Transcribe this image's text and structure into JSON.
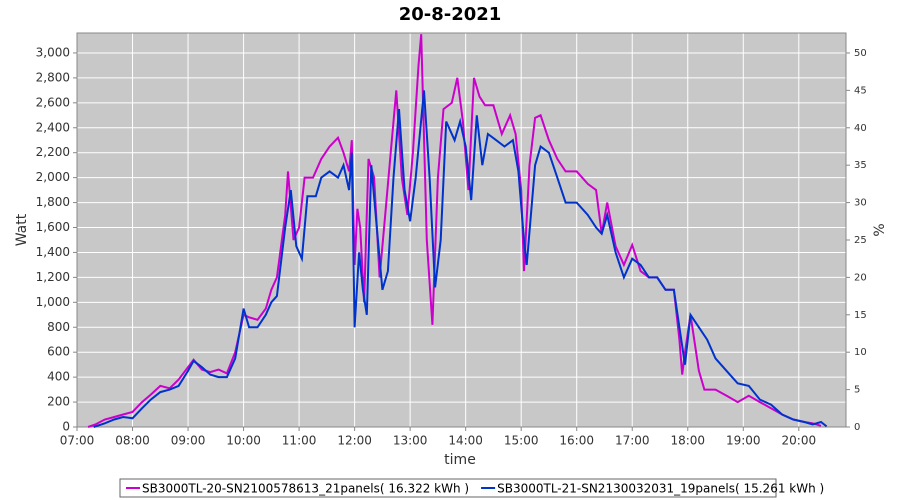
{
  "chart_data": {
    "type": "line",
    "title": "20-8-2021",
    "x_label": "time",
    "y_label": "Watt",
    "y2_label": "%",
    "xlim": [
      7,
      20.85
    ],
    "xticks": [
      {
        "value": 7,
        "label": "07:00"
      },
      {
        "value": 8,
        "label": "08:00"
      },
      {
        "value": 9,
        "label": "09:00"
      },
      {
        "value": 10,
        "label": "10:00"
      },
      {
        "value": 11,
        "label": "11:00"
      },
      {
        "value": 12,
        "label": "12:00"
      },
      {
        "value": 13,
        "label": "13:00"
      },
      {
        "value": 14,
        "label": "14:00"
      },
      {
        "value": 15,
        "label": "15:00"
      },
      {
        "value": 16,
        "label": "16:00"
      },
      {
        "value": 17,
        "label": "17:00"
      },
      {
        "value": 18,
        "label": "18:00"
      },
      {
        "value": 19,
        "label": "19:00"
      },
      {
        "value": 20,
        "label": "20:00"
      }
    ],
    "ylim": [
      0,
      3160
    ],
    "yticks": [
      0,
      200,
      400,
      600,
      800,
      {
        "value": 1000,
        "label": "1,000"
      },
      {
        "value": 1200,
        "label": "1,200"
      },
      {
        "value": 1400,
        "label": "1,400"
      },
      {
        "value": 1600,
        "label": "1,600"
      },
      {
        "value": 1800,
        "label": "1,800"
      },
      {
        "value": 2000,
        "label": "2,000"
      },
      {
        "value": 2200,
        "label": "2,200"
      },
      {
        "value": 2400,
        "label": "2,400"
      },
      {
        "value": 2600,
        "label": "2,600"
      },
      {
        "value": 2800,
        "label": "2,800"
      },
      {
        "value": 3000,
        "label": "3,000"
      }
    ],
    "y2lim": [
      0,
      52.67
    ],
    "y2ticks": [
      0,
      5,
      10,
      15,
      20,
      25,
      30,
      35,
      40,
      45,
      50
    ],
    "grid": true,
    "legend": "bottom",
    "series": [
      {
        "name": "SB3000TL-20-SN2100578613_21panels( 16.322 kWh )",
        "color": "#cc00cc",
        "x": [
          7.2,
          7.33,
          7.5,
          7.67,
          7.83,
          8.0,
          8.17,
          8.33,
          8.5,
          8.67,
          8.83,
          9.0,
          9.1,
          9.25,
          9.4,
          9.55,
          9.7,
          9.85,
          10.0,
          10.1,
          10.25,
          10.4,
          10.5,
          10.6,
          10.75,
          10.8,
          10.9,
          11.0,
          11.1,
          11.25,
          11.4,
          11.55,
          11.7,
          11.8,
          11.9,
          11.95,
          12.0,
          12.05,
          12.1,
          12.17,
          12.25,
          12.35,
          12.45,
          12.55,
          12.65,
          12.75,
          12.85,
          12.95,
          13.05,
          13.15,
          13.2,
          13.3,
          13.4,
          13.5,
          13.6,
          13.75,
          13.85,
          13.95,
          14.05,
          14.15,
          14.25,
          14.35,
          14.5,
          14.65,
          14.8,
          14.9,
          15.0,
          15.05,
          15.15,
          15.25,
          15.35,
          15.5,
          15.65,
          15.8,
          16.0,
          16.2,
          16.35,
          16.45,
          16.55,
          16.7,
          16.85,
          17.0,
          17.15,
          17.3,
          17.45,
          17.6,
          17.75,
          17.85,
          17.9,
          17.95,
          18.05,
          18.2,
          18.3,
          18.5,
          18.7,
          18.9,
          19.1,
          19.3,
          19.5,
          19.7,
          19.9,
          20.1,
          20.25,
          20.4
        ],
        "values": [
          0,
          20,
          60,
          80,
          100,
          120,
          200,
          260,
          330,
          310,
          380,
          480,
          540,
          460,
          440,
          460,
          430,
          600,
          900,
          880,
          860,
          950,
          1100,
          1200,
          1700,
          2050,
          1500,
          1600,
          2000,
          2000,
          2150,
          2250,
          2320,
          2200,
          2050,
          2300,
          1300,
          1750,
          1600,
          1000,
          2150,
          2000,
          1200,
          1700,
          2200,
          2700,
          2000,
          1700,
          2200,
          2900,
          3150,
          1500,
          820,
          2000,
          2550,
          2600,
          2800,
          2450,
          1900,
          2800,
          2650,
          2580,
          2580,
          2350,
          2500,
          2350,
          1900,
          1250,
          2100,
          2480,
          2500,
          2300,
          2150,
          2050,
          2050,
          1950,
          1900,
          1550,
          1800,
          1450,
          1300,
          1460,
          1250,
          1200,
          1200,
          1100,
          1100,
          700,
          420,
          600,
          900,
          450,
          300,
          300,
          250,
          200,
          250,
          200,
          150,
          100,
          60,
          40,
          30,
          10
        ]
      },
      {
        "name": "SB3000TL-21-SN2130032031_19panels( 15.261 kWh )",
        "color": "#0033cc",
        "x": [
          7.3,
          7.5,
          7.67,
          7.83,
          8.0,
          8.17,
          8.33,
          8.5,
          8.67,
          8.83,
          9.0,
          9.1,
          9.25,
          9.4,
          9.55,
          9.7,
          9.85,
          10.0,
          10.1,
          10.25,
          10.4,
          10.5,
          10.6,
          10.75,
          10.85,
          10.95,
          11.05,
          11.15,
          11.3,
          11.4,
          11.55,
          11.7,
          11.8,
          11.9,
          11.95,
          12.0,
          12.08,
          12.15,
          12.22,
          12.3,
          12.4,
          12.5,
          12.6,
          12.7,
          12.8,
          12.9,
          13.0,
          13.1,
          13.25,
          13.35,
          13.45,
          13.55,
          13.65,
          13.8,
          13.9,
          14.0,
          14.1,
          14.2,
          14.3,
          14.4,
          14.55,
          14.7,
          14.85,
          14.95,
          15.05,
          15.1,
          15.25,
          15.35,
          15.5,
          15.65,
          15.8,
          16.0,
          16.2,
          16.35,
          16.45,
          16.55,
          16.7,
          16.85,
          17.0,
          17.15,
          17.3,
          17.45,
          17.6,
          17.75,
          17.85,
          17.95,
          18.05,
          18.2,
          18.35,
          18.5,
          18.7,
          18.9,
          19.1,
          19.3,
          19.5,
          19.7,
          19.9,
          20.1,
          20.25,
          20.4,
          20.5
        ],
        "values": [
          0,
          30,
          60,
          80,
          70,
          150,
          220,
          280,
          300,
          330,
          450,
          530,
          480,
          420,
          400,
          400,
          550,
          950,
          800,
          800,
          900,
          1000,
          1050,
          1600,
          1900,
          1450,
          1350,
          1850,
          1850,
          2000,
          2050,
          2000,
          2100,
          1900,
          2200,
          800,
          1400,
          1100,
          900,
          2100,
          1600,
          1100,
          1250,
          2000,
          2550,
          1900,
          1650,
          2000,
          2700,
          2000,
          1120,
          1500,
          2450,
          2300,
          2450,
          2250,
          1820,
          2500,
          2100,
          2350,
          2300,
          2250,
          2300,
          2050,
          1500,
          1300,
          2100,
          2250,
          2200,
          2000,
          1800,
          1800,
          1700,
          1600,
          1550,
          1700,
          1400,
          1200,
          1350,
          1300,
          1200,
          1200,
          1100,
          1100,
          800,
          500,
          900,
          800,
          700,
          550,
          450,
          350,
          330,
          220,
          180,
          100,
          60,
          40,
          20,
          40,
          5
        ]
      }
    ]
  }
}
